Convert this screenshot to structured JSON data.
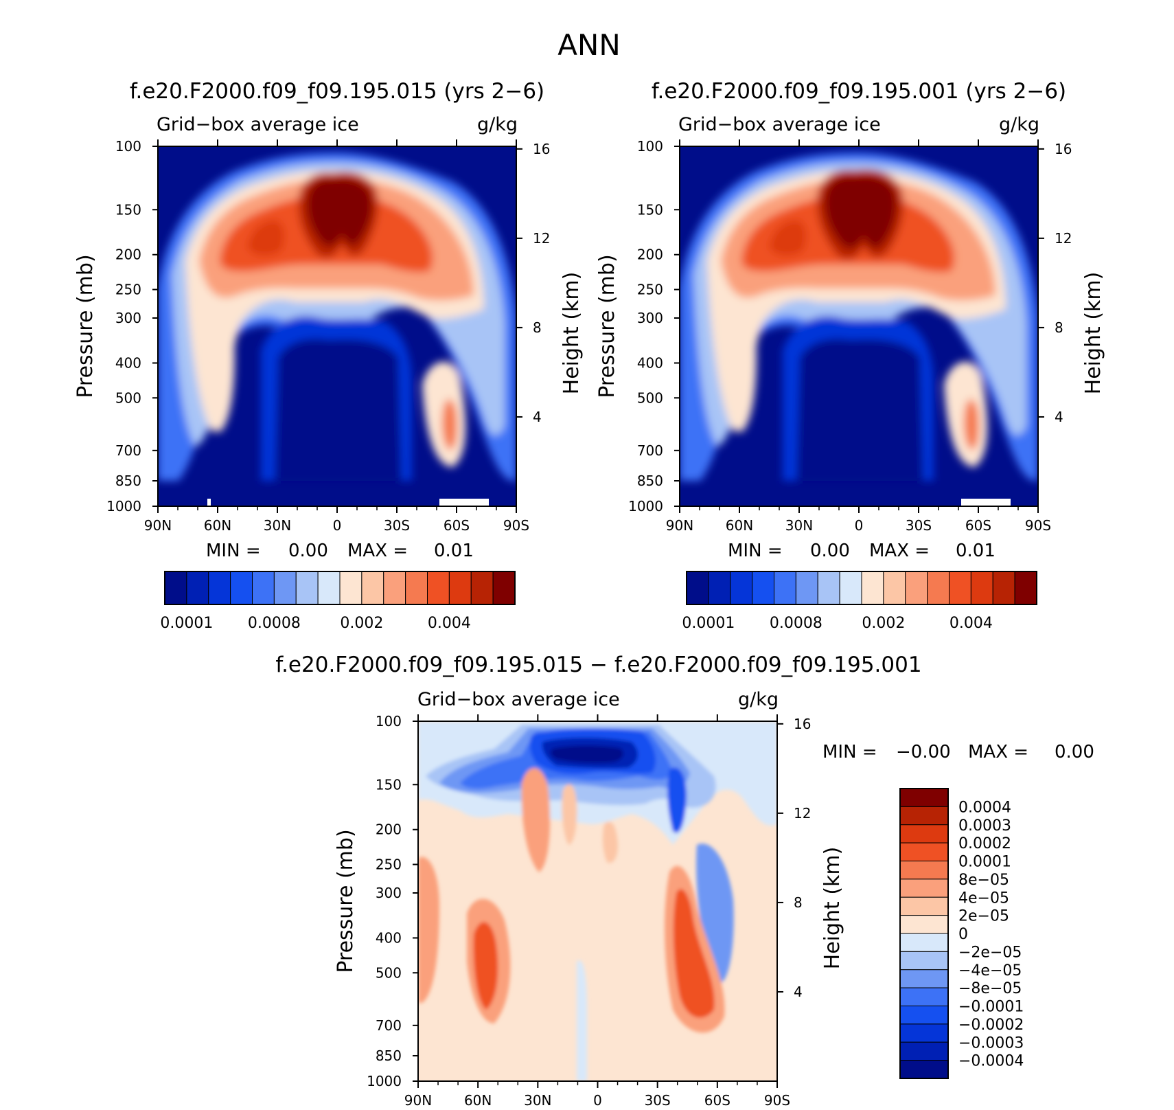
{
  "figure_title": "ANN",
  "chart_data": [
    {
      "type": "heatmap",
      "panel": "left",
      "title": "f.e20.F2000.f09_f09.195.015 (yrs 2−6)",
      "field_label": "Grid−box average ice",
      "units": "g/kg",
      "xlabel": "",
      "ylabel": "Pressure (mb)",
      "y2label": "Height (km)",
      "x_ticks": [
        "90N",
        "60N",
        "30N",
        "0",
        "30S",
        "60S",
        "90S"
      ],
      "x_values": [
        90,
        60,
        30,
        0,
        -30,
        -60,
        -90
      ],
      "y_ticks": [
        "100",
        "150",
        "200",
        "250",
        "300",
        "400",
        "500",
        "700",
        "850",
        "1000"
      ],
      "y_values": [
        100,
        150,
        200,
        250,
        300,
        400,
        500,
        700,
        850,
        1000
      ],
      "y2_ticks": [
        "16",
        "12",
        "8",
        "4"
      ],
      "y2_values": [
        16,
        12,
        8,
        4
      ],
      "ylim": [
        1000,
        100
      ],
      "min_label": "MIN =",
      "min_value": "0.00",
      "max_label": "MAX =",
      "max_value": "0.01",
      "levels": [
        0.0001,
        0.0002,
        0.0004,
        0.0006,
        0.0008,
        0.001,
        0.0012,
        0.0016,
        0.002,
        0.0025,
        0.003,
        0.0035,
        0.004,
        0.0045,
        0.005
      ],
      "colorbar_tick_labels": [
        "0.0001",
        "0.0008",
        "0.002",
        "0.004"
      ],
      "colors": [
        "#000d8a",
        "#0020b4",
        "#0535d8",
        "#1550f0",
        "#3d72f6",
        "#6e97f4",
        "#a8c4f6",
        "#d8e8fa",
        "#fde5d2",
        "#fcc6a6",
        "#faa07c",
        "#f57a50",
        "#ef5124",
        "#dd3a10",
        "#b72304",
        "#7f0000"
      ]
    },
    {
      "type": "heatmap",
      "panel": "right",
      "title": "f.e20.F2000.f09_f09.195.001 (yrs 2−6)",
      "field_label": "Grid−box average ice",
      "units": "g/kg",
      "xlabel": "",
      "ylabel": "Pressure (mb)",
      "y2label": "Height (km)",
      "x_ticks": [
        "90N",
        "60N",
        "30N",
        "0",
        "30S",
        "60S",
        "90S"
      ],
      "x_values": [
        90,
        60,
        30,
        0,
        -30,
        -60,
        -90
      ],
      "y_ticks": [
        "100",
        "150",
        "200",
        "250",
        "300",
        "400",
        "500",
        "700",
        "850",
        "1000"
      ],
      "y_values": [
        100,
        150,
        200,
        250,
        300,
        400,
        500,
        700,
        850,
        1000
      ],
      "y2_ticks": [
        "16",
        "12",
        "8",
        "4"
      ],
      "y2_values": [
        16,
        12,
        8,
        4
      ],
      "ylim": [
        1000,
        100
      ],
      "min_label": "MIN =",
      "min_value": "0.00",
      "max_label": "MAX =",
      "max_value": "0.01",
      "levels": [
        0.0001,
        0.0002,
        0.0004,
        0.0006,
        0.0008,
        0.001,
        0.0012,
        0.0016,
        0.002,
        0.0025,
        0.003,
        0.0035,
        0.004,
        0.0045,
        0.005
      ],
      "colorbar_tick_labels": [
        "0.0001",
        "0.0008",
        "0.002",
        "0.004"
      ],
      "colors": [
        "#000d8a",
        "#0020b4",
        "#0535d8",
        "#1550f0",
        "#3d72f6",
        "#6e97f4",
        "#a8c4f6",
        "#d8e8fa",
        "#fde5d2",
        "#fcc6a6",
        "#faa07c",
        "#f57a50",
        "#ef5124",
        "#dd3a10",
        "#b72304",
        "#7f0000"
      ]
    },
    {
      "type": "heatmap",
      "panel": "difference",
      "title": "f.e20.F2000.f09_f09.195.015 − f.e20.F2000.f09_f09.195.001",
      "field_label": "Grid−box average ice",
      "units": "g/kg",
      "xlabel": "",
      "ylabel": "Pressure (mb)",
      "y2label": "Height (km)",
      "x_ticks": [
        "90N",
        "60N",
        "30N",
        "0",
        "30S",
        "60S",
        "90S"
      ],
      "x_values": [
        90,
        60,
        30,
        0,
        -30,
        -60,
        -90
      ],
      "y_ticks": [
        "100",
        "150",
        "200",
        "250",
        "300",
        "400",
        "500",
        "700",
        "850",
        "1000"
      ],
      "y_values": [
        100,
        150,
        200,
        250,
        300,
        400,
        500,
        700,
        850,
        1000
      ],
      "y2_ticks": [
        "16",
        "12",
        "8",
        "4"
      ],
      "y2_values": [
        16,
        12,
        8,
        4
      ],
      "ylim": [
        1000,
        100
      ],
      "min_label": "MIN =",
      "min_value": "−0.00",
      "max_label": "MAX =",
      "max_value": "0.00",
      "colorbar_tick_labels": [
        "0.0004",
        "0.0003",
        "0.0002",
        "0.0001",
        "8e−05",
        "4e−05",
        "2e−05",
        "0",
        "−2e−05",
        "−4e−05",
        "−8e−05",
        "−0.0001",
        "−0.0002",
        "−0.0003",
        "−0.0004"
      ],
      "colors": [
        "#7f0000",
        "#b72304",
        "#dd3a10",
        "#ef5124",
        "#f57a50",
        "#faa07c",
        "#fcc6a6",
        "#fde5d2",
        "#d8e8fa",
        "#a8c4f6",
        "#6e97f4",
        "#3d72f6",
        "#1550f0",
        "#0535d8",
        "#0020b4",
        "#000d8a"
      ]
    }
  ]
}
